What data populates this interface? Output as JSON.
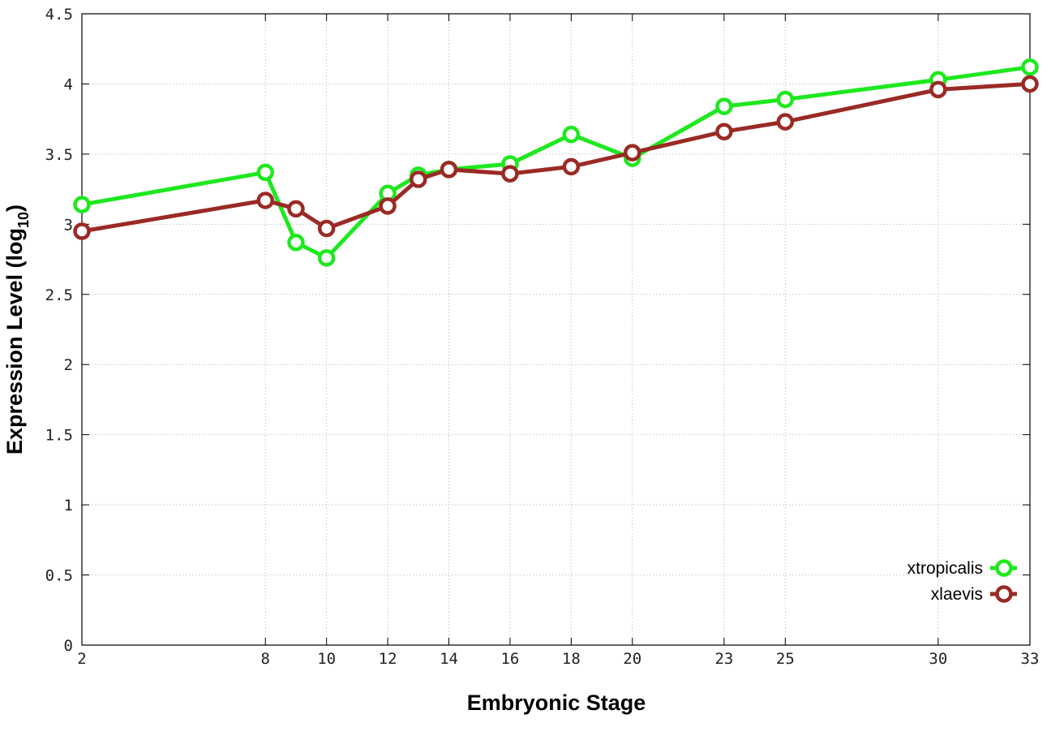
{
  "chart_data": {
    "type": "line",
    "xlabel": "Embryonic Stage",
    "ylabel_main": "Expression Level (log",
    "ylabel_sub": "10",
    "ylabel_close": ")",
    "ylim": [
      0,
      4.5
    ],
    "xlim": [
      2,
      33
    ],
    "yticks": [
      0,
      0.5,
      1,
      1.5,
      2,
      2.5,
      3,
      3.5,
      4,
      4.5
    ],
    "ytick_labels": [
      "0",
      "0.5",
      "1",
      "1.5",
      "2",
      "2.5",
      "3",
      "3.5",
      "4",
      "4.5"
    ],
    "x": [
      2,
      8,
      9,
      10,
      12,
      13,
      14,
      16,
      18,
      20,
      23,
      25,
      30,
      33
    ],
    "xtick_labels": [
      "2",
      "8",
      "10",
      "12",
      "14",
      "16",
      "18",
      "20",
      "23",
      "25",
      "30",
      "33"
    ],
    "xtick_values": [
      2,
      8,
      10,
      12,
      14,
      16,
      18,
      20,
      23,
      25,
      30,
      33
    ],
    "grid": true,
    "legend_position": "bottom-right",
    "series": [
      {
        "name": "xtropicalis",
        "color": "#1ee81e",
        "values": [
          3.14,
          3.37,
          2.87,
          2.76,
          3.22,
          3.35,
          3.39,
          3.43,
          3.64,
          3.47,
          3.84,
          3.89,
          4.03,
          4.12
        ]
      },
      {
        "name": "xlaevis",
        "color": "#9a2a25",
        "values": [
          2.95,
          3.17,
          3.11,
          2.97,
          3.13,
          3.32,
          3.39,
          3.36,
          3.41,
          3.51,
          3.66,
          3.73,
          3.96,
          4.0
        ]
      }
    ]
  }
}
